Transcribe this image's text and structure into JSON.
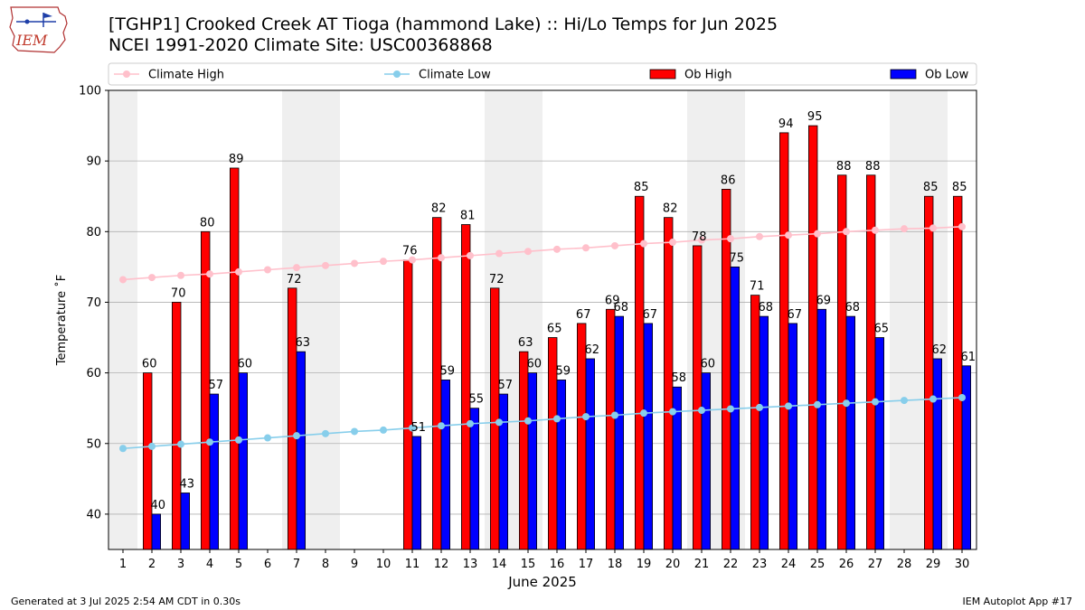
{
  "header": {
    "title_line1": "[TGHP1] Crooked Creek AT Tioga (hammond Lake) :: Hi/Lo Temps for Jun 2025",
    "title_line2": "NCEI 1991-2020 Climate Site: USC00368868",
    "logo_text": "IEM"
  },
  "footer": {
    "generated": "Generated at 3 Jul 2025 2:54 AM CDT in 0.30s",
    "app": "IEM Autoplot App #17"
  },
  "chart_data": {
    "type": "bar",
    "xlabel": "June 2025",
    "ylabel": "Temperature ˚F",
    "ylim": [
      35,
      100
    ],
    "yticks": [
      40,
      50,
      60,
      70,
      80,
      90,
      100
    ],
    "x": [
      1,
      2,
      3,
      4,
      5,
      6,
      7,
      8,
      9,
      10,
      11,
      12,
      13,
      14,
      15,
      16,
      17,
      18,
      19,
      20,
      21,
      22,
      23,
      24,
      25,
      26,
      27,
      28,
      29,
      30
    ],
    "grid": true,
    "weekend_shading": [
      [
        1,
        1
      ],
      [
        7,
        8
      ],
      [
        14,
        15
      ],
      [
        21,
        22
      ],
      [
        28,
        29
      ]
    ],
    "legend_position": "top",
    "series": [
      {
        "name": "Climate High",
        "kind": "line",
        "color": "#ffc0cb",
        "values": [
          73.2,
          73.5,
          73.8,
          74.0,
          74.3,
          74.6,
          74.9,
          75.2,
          75.5,
          75.8,
          76.0,
          76.3,
          76.6,
          76.9,
          77.2,
          77.5,
          77.7,
          78.0,
          78.3,
          78.5,
          78.8,
          79.0,
          79.3,
          79.5,
          79.7,
          80.0,
          80.2,
          80.4,
          80.5,
          80.7
        ]
      },
      {
        "name": "Climate Low",
        "kind": "line",
        "color": "#87ceeb",
        "values": [
          49.3,
          49.6,
          49.9,
          50.2,
          50.5,
          50.8,
          51.1,
          51.4,
          51.7,
          51.9,
          52.2,
          52.5,
          52.8,
          53.0,
          53.2,
          53.5,
          53.8,
          54.0,
          54.3,
          54.5,
          54.7,
          54.9,
          55.1,
          55.3,
          55.5,
          55.7,
          55.9,
          56.1,
          56.3,
          56.5
        ]
      },
      {
        "name": "Ob High",
        "kind": "bar",
        "color": "#ff0000",
        "values": [
          null,
          60,
          70,
          80,
          89,
          null,
          72,
          null,
          null,
          null,
          76,
          82,
          81,
          72,
          63,
          65,
          67,
          69,
          85,
          82,
          78,
          86,
          71,
          94,
          95,
          88,
          88,
          null,
          85,
          85
        ]
      },
      {
        "name": "Ob Low",
        "kind": "bar",
        "color": "#0000ff",
        "values": [
          null,
          40,
          43,
          57,
          60,
          null,
          63,
          null,
          null,
          null,
          51,
          59,
          55,
          57,
          60,
          59,
          62,
          68,
          67,
          58,
          60,
          75,
          68,
          67,
          69,
          68,
          65,
          null,
          62,
          61
        ]
      }
    ]
  }
}
